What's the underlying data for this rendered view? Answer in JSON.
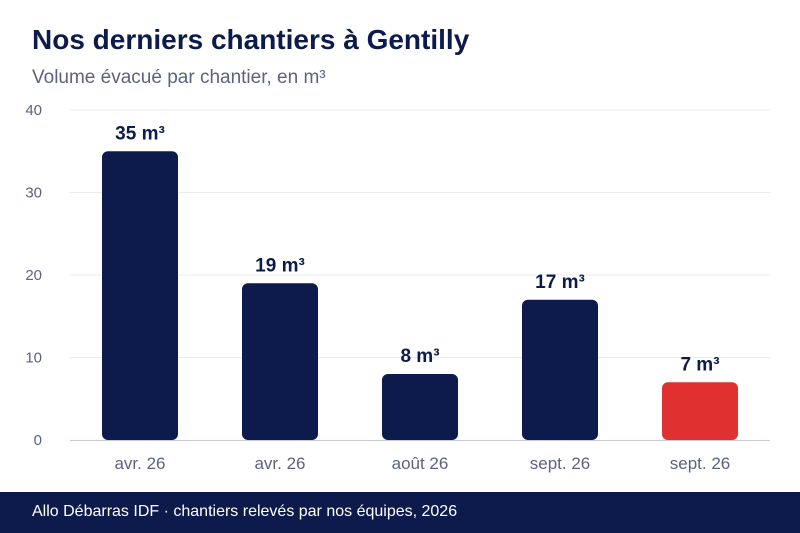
{
  "title": "Nos derniers chantiers à Gentilly",
  "subtitle": "Volume évacué par chantier, en m³",
  "footer": "Allo Débarras IDF · chantiers relevés par nos équipes, 2026",
  "colors": {
    "bar": "#0d1b4c",
    "highlight": "#e03030",
    "grid": "#ececf0",
    "axis": "#c8cad8",
    "tick_text": "#5a6480",
    "label_text": "#0d1b4c"
  },
  "chart_data": {
    "type": "bar",
    "categories": [
      "avr. 26",
      "avr. 26",
      "août 26",
      "sept. 26",
      "sept. 26"
    ],
    "values": [
      35,
      19,
      8,
      17,
      7
    ],
    "data_labels": [
      "35 m³",
      "19 m³",
      "8 m³",
      "17 m³",
      "7 m³"
    ],
    "highlighted_index": 4,
    "yticks": [
      "0",
      "10",
      "20",
      "30",
      "40"
    ],
    "ylim": [
      0,
      40
    ],
    "grid": true,
    "xlabel": "",
    "ylabel": ""
  }
}
